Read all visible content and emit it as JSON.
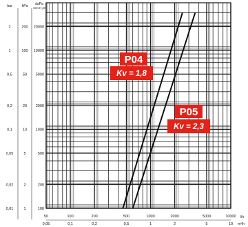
{
  "chart_data": {
    "type": "line",
    "x_scale": "log",
    "y_scale": "log",
    "grid": true,
    "y_header": {
      "bar": "bar",
      "kpa": "kPa",
      "dapa": "daPa",
      "dapa_unit": "mm H₂O"
    },
    "x_header": {
      "primary": "l/h",
      "secondary": "m³/h"
    },
    "y_ticks": [
      {
        "dapa": 100,
        "dapa_label": "100",
        "kpa_label": "1",
        "bar_label": "0,01"
      },
      {
        "dapa": 200,
        "dapa_label": "200",
        "kpa_label": "2",
        "bar_label": "0,02"
      },
      {
        "dapa": 500,
        "dapa_label": "500",
        "kpa_label": "5",
        "bar_label": "0,05"
      },
      {
        "dapa": 1000,
        "dapa_label": "1000",
        "kpa_label": "10",
        "bar_label": "0,1"
      },
      {
        "dapa": 2000,
        "dapa_label": "2000",
        "kpa_label": "20",
        "bar_label": "0,2"
      },
      {
        "dapa": 5000,
        "dapa_label": "5000",
        "kpa_label": "50",
        "bar_label": "0,5"
      },
      {
        "dapa": 10000,
        "dapa_label": "10000",
        "kpa_label": "100",
        "bar_label": "1"
      },
      {
        "dapa": 20000,
        "dapa_label": "20000",
        "kpa_label": "200",
        "bar_label": "2"
      }
    ],
    "x_ticks": [
      {
        "lh": 50,
        "lh_label": "50",
        "m3h_label": "0,05"
      },
      {
        "lh": 100,
        "lh_label": "100",
        "m3h_label": "0,1"
      },
      {
        "lh": 200,
        "lh_label": "200",
        "m3h_label": "0,2"
      },
      {
        "lh": 500,
        "lh_label": "500",
        "m3h_label": "0,5"
      },
      {
        "lh": 1000,
        "lh_label": "1000",
        "m3h_label": "1"
      },
      {
        "lh": 2000,
        "lh_label": "2000",
        "m3h_label": "2"
      },
      {
        "lh": 5000,
        "lh_label": "5000",
        "m3h_label": "5"
      },
      {
        "lh": 10000,
        "lh_label": "10000",
        "m3h_label": "10"
      }
    ],
    "xlim": [
      50,
      10000
    ],
    "ylim": [
      100,
      40000
    ],
    "series": [
      {
        "name": "P04",
        "kv_label": "Kv = 1,8",
        "kv": 1.8,
        "color": "#e2231a",
        "points": [
          [
            452,
            100
          ],
          [
            2500,
            30000
          ]
        ]
      },
      {
        "name": "P05",
        "kv_label": "Kv = 2,3",
        "kv": 2.3,
        "color": "#e2231a",
        "points": [
          [
            600,
            100
          ],
          [
            3600,
            30000
          ]
        ]
      }
    ]
  }
}
